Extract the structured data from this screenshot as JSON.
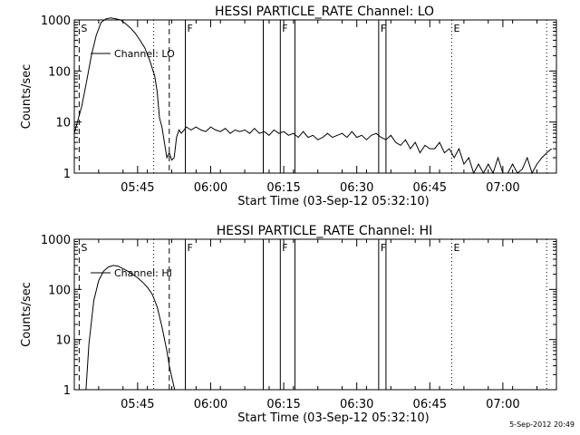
{
  "timestamp": "5-Sep-2012 20:49",
  "chart_data": [
    {
      "type": "line",
      "title": "HESSI PARTICLE_RATE Channel: LO",
      "xlabel": "Start Time (03-Sep-12 05:32:10)",
      "ylabel": "Counts/sec",
      "yscale": "log",
      "ylim": [
        1,
        1000
      ],
      "xlim_minutes": [
        0,
        99
      ],
      "x_ticks": [
        {
          "x": 13,
          "label": "05:45"
        },
        {
          "x": 28,
          "label": "06:00"
        },
        {
          "x": 43,
          "label": "06:15"
        },
        {
          "x": 58,
          "label": "06:30"
        },
        {
          "x": 73,
          "label": "06:45"
        },
        {
          "x": 88,
          "label": "07:00"
        }
      ],
      "y_ticks": [
        {
          "y": 1,
          "label": "1"
        },
        {
          "y": 10,
          "label": "10"
        },
        {
          "y": 100,
          "label": "100"
        },
        {
          "y": 1000,
          "label": "1000"
        }
      ],
      "legend": "Channel: LO",
      "markers": [
        {
          "x": 1.0,
          "style": "dashed",
          "label": "S"
        },
        {
          "x": 19.5,
          "style": "dashed",
          "label": ""
        },
        {
          "x": 16.3,
          "style": "dotted",
          "label": ""
        },
        {
          "x": 22.8,
          "style": "solid",
          "label": "F"
        },
        {
          "x": 38.8,
          "style": "solid",
          "label": ""
        },
        {
          "x": 42.3,
          "style": "solid",
          "label": "F"
        },
        {
          "x": 45.3,
          "style": "solid",
          "label": ""
        },
        {
          "x": 62.5,
          "style": "solid",
          "label": "F"
        },
        {
          "x": 64.0,
          "style": "solid",
          "label": ""
        },
        {
          "x": 77.5,
          "style": "dotted",
          "label": "E"
        },
        {
          "x": 97.0,
          "style": "dotted",
          "label": ""
        }
      ],
      "series": [
        {
          "x": [
            0,
            0.5,
            1.5,
            2.5,
            3.5,
            4.5,
            5.5,
            6.5,
            7.5,
            8.5,
            9.5,
            10.5,
            11.5,
            12.5,
            13.5,
            14.5,
            15.5,
            16.5,
            17,
            17.5,
            18,
            18.5,
            19,
            19.5,
            20,
            20.5,
            21,
            21.5,
            22
          ],
          "y": [
            6,
            9,
            20,
            60,
            200,
            500,
            900,
            1050,
            1100,
            1050,
            1000,
            850,
            700,
            550,
            400,
            280,
            160,
            80,
            40,
            12,
            8,
            4,
            2,
            2.5,
            1.8,
            2,
            5,
            7,
            6
          ]
        },
        {
          "x": [
            22,
            23,
            24,
            25,
            26,
            27,
            28,
            29,
            30,
            31,
            32,
            33,
            34,
            35,
            36,
            37,
            38,
            39,
            40,
            41,
            42,
            43,
            44,
            45,
            46,
            47,
            48,
            49,
            50,
            51,
            52,
            53,
            54,
            55,
            56,
            57,
            58,
            59,
            60,
            61,
            62,
            63,
            64,
            65,
            66,
            67,
            68,
            69,
            70,
            71,
            72,
            73,
            74,
            75,
            76,
            77,
            78,
            79,
            80,
            81,
            82,
            83,
            84,
            85,
            86,
            87,
            88,
            89,
            90,
            91,
            92,
            93,
            94,
            95,
            96,
            97,
            98
          ],
          "y": [
            6,
            8,
            7,
            8,
            7,
            6.5,
            8,
            7,
            6.5,
            7.5,
            6,
            7,
            6.5,
            7,
            6,
            7.5,
            6,
            6.5,
            5.5,
            7,
            6,
            6.5,
            5.5,
            6,
            5,
            6.5,
            5,
            5.5,
            4.5,
            5,
            6,
            5,
            5.5,
            6,
            5,
            6.5,
            5,
            5.5,
            4.5,
            5.5,
            6,
            5,
            4.5,
            5.5,
            4,
            3.5,
            4.5,
            3,
            4,
            2.5,
            3.5,
            3,
            3,
            4,
            2.5,
            3,
            2,
            3,
            1.5,
            2,
            1,
            1.5,
            1,
            1.5,
            1,
            2,
            1,
            1,
            1.5,
            1,
            1.2,
            2,
            1,
            1.5,
            2,
            2.5,
            3
          ]
        }
      ]
    },
    {
      "type": "line",
      "title": "HESSI PARTICLE_RATE Channel: HI",
      "xlabel": "Start Time (03-Sep-12 05:32:10)",
      "ylabel": "Counts/sec",
      "yscale": "log",
      "ylim": [
        1,
        1000
      ],
      "xlim_minutes": [
        0,
        99
      ],
      "x_ticks": [
        {
          "x": 13,
          "label": "05:45"
        },
        {
          "x": 28,
          "label": "06:00"
        },
        {
          "x": 43,
          "label": "06:15"
        },
        {
          "x": 58,
          "label": "06:30"
        },
        {
          "x": 73,
          "label": "06:45"
        },
        {
          "x": 88,
          "label": "07:00"
        }
      ],
      "y_ticks": [
        {
          "y": 1,
          "label": "1"
        },
        {
          "y": 10,
          "label": "10"
        },
        {
          "y": 100,
          "label": "100"
        },
        {
          "y": 1000,
          "label": "1000"
        }
      ],
      "legend": "Channel: HI",
      "markers": [
        {
          "x": 1.0,
          "style": "dashed",
          "label": "S"
        },
        {
          "x": 19.5,
          "style": "dashed",
          "label": ""
        },
        {
          "x": 16.3,
          "style": "dotted",
          "label": ""
        },
        {
          "x": 22.8,
          "style": "solid",
          "label": "F"
        },
        {
          "x": 38.8,
          "style": "solid",
          "label": ""
        },
        {
          "x": 42.3,
          "style": "solid",
          "label": "F"
        },
        {
          "x": 45.3,
          "style": "solid",
          "label": ""
        },
        {
          "x": 62.5,
          "style": "solid",
          "label": "F"
        },
        {
          "x": 64.0,
          "style": "solid",
          "label": ""
        },
        {
          "x": 77.5,
          "style": "dotted",
          "label": "E"
        },
        {
          "x": 97.0,
          "style": "dotted",
          "label": ""
        }
      ],
      "series": [
        {
          "x": [
            2.4,
            3,
            4,
            5,
            6,
            7,
            8,
            9,
            10,
            11,
            12,
            13,
            14,
            15,
            16,
            17,
            18,
            19,
            19.5,
            20,
            20.6
          ],
          "y": [
            1,
            8,
            60,
            150,
            230,
            280,
            300,
            290,
            260,
            230,
            200,
            170,
            140,
            110,
            80,
            45,
            18,
            6,
            3,
            1.8,
            1
          ]
        }
      ]
    }
  ]
}
